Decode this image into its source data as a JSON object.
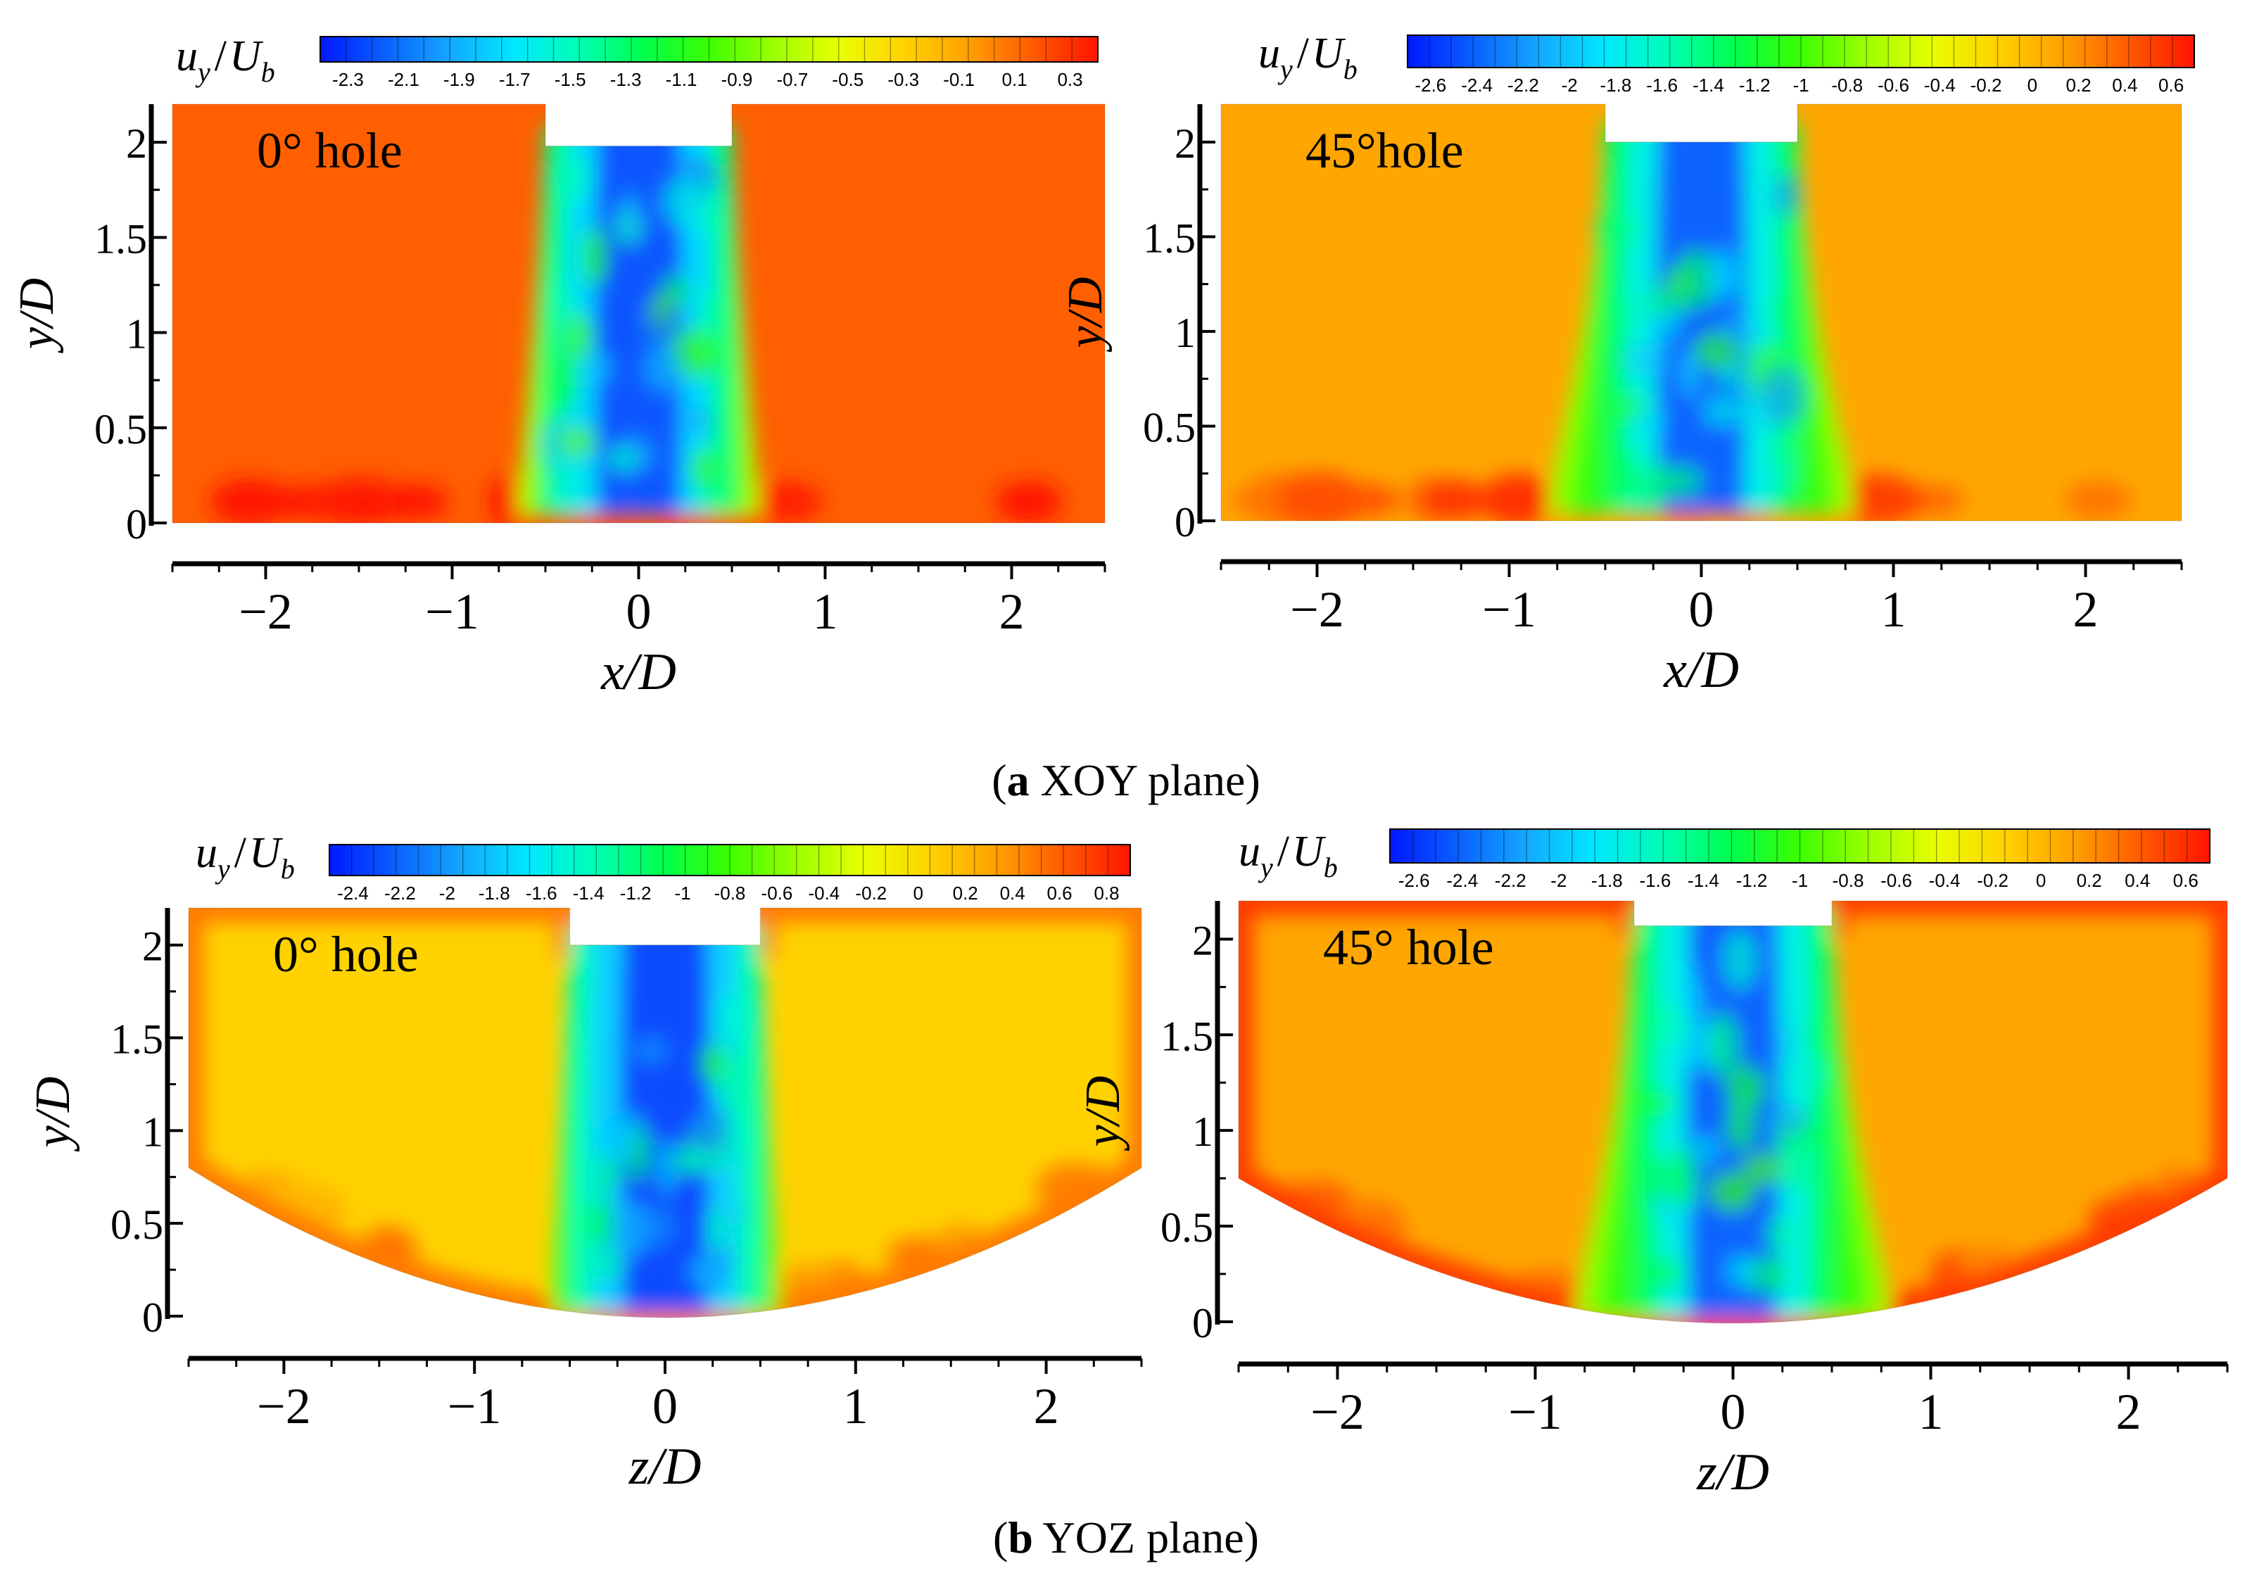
{
  "colors": {
    "cmap": [
      "#0018ff",
      "#0a60ff",
      "#14a8ff",
      "#00e8ff",
      "#00ffb4",
      "#00ff4c",
      "#3cff00",
      "#9cff00",
      "#e8ff00",
      "#ffd200",
      "#ffa000",
      "#ff5a00",
      "#ff1400"
    ],
    "background": "#ffffff",
    "axis": "#000000",
    "hole_cut": "#ffffff"
  },
  "captions": {
    "a_letter": "a",
    "a_text": " XOY plane",
    "b_letter": "b",
    "b_text": " YOZ plane"
  },
  "chart_data": [
    {
      "id": "xoy-0deg",
      "type": "heatmap",
      "title": "0° hole",
      "quantity": "u_y/U_b",
      "colorbar_label_main": "u",
      "colorbar_label_sub": "y",
      "colorbar_label_den": "U",
      "colorbar_label_den_sub": "b",
      "colorbar_ticks": [
        "-2.3",
        "-2.1",
        "-1.9",
        "-1.7",
        "-1.5",
        "-1.3",
        "-1.1",
        "-0.9",
        "-0.7",
        "-0.5",
        "-0.3",
        "-0.1",
        "0.1",
        "0.3"
      ],
      "colorbar_range": [
        -2.4,
        0.4
      ],
      "xlabel": "x/D",
      "ylabel": "y/D",
      "xticks": [
        "−2",
        "−1",
        "0",
        "1",
        "2"
      ],
      "yticks": [
        "0",
        "0.5",
        "1",
        "1.5",
        "2"
      ],
      "xlim": [
        -2.5,
        2.5
      ],
      "ylim": [
        0,
        2.2
      ],
      "domain_shape": "flat",
      "hole_center": 0.0,
      "hole_width": 1.0,
      "hole_top": 1.98,
      "jet_core_value": -2.2,
      "background_value": 0.15,
      "jet_base_spread": 0.65
    },
    {
      "id": "xoy-45deg",
      "type": "heatmap",
      "title": "45°hole",
      "quantity": "u_y/U_b",
      "colorbar_label_main": "u",
      "colorbar_label_sub": "y",
      "colorbar_label_den": "U",
      "colorbar_label_den_sub": "b",
      "colorbar_ticks": [
        "-2.6",
        "-2.4",
        "-2.2",
        "-2",
        "-1.8",
        "-1.6",
        "-1.4",
        "-1.2",
        "-1",
        "-0.8",
        "-0.6",
        "-0.4",
        "-0.2",
        "0",
        "0.2",
        "0.4",
        "0.6"
      ],
      "colorbar_range": [
        -2.7,
        0.7
      ],
      "xlabel": "x/D",
      "ylabel": "y/D",
      "xticks": [
        "−2",
        "−1",
        "0",
        "1",
        "2"
      ],
      "yticks": [
        "0",
        "0.5",
        "1",
        "1.5",
        "2"
      ],
      "xlim": [
        -2.5,
        2.5
      ],
      "ylim": [
        0,
        2.2
      ],
      "domain_shape": "flat",
      "hole_center": 0.0,
      "hole_width": 1.0,
      "hole_top": 2.0,
      "jet_core_value": -2.4,
      "background_value": 0.1,
      "jet_base_spread": 0.8
    },
    {
      "id": "yoz-0deg",
      "type": "heatmap",
      "title": "0° hole",
      "quantity": "u_y/U_b",
      "colorbar_label_main": "u",
      "colorbar_label_sub": "y",
      "colorbar_label_den": "U",
      "colorbar_label_den_sub": "b",
      "colorbar_ticks": [
        "-2.4",
        "-2.2",
        "-2",
        "-1.8",
        "-1.6",
        "-1.4",
        "-1.2",
        "-1",
        "-0.8",
        "-0.6",
        "-0.4",
        "-0.2",
        "0",
        "0.2",
        "0.4",
        "0.6",
        "0.8"
      ],
      "colorbar_range": [
        -2.5,
        0.9
      ],
      "xlabel": "z/D",
      "ylabel": "y/D",
      "xticks": [
        "−2",
        "−1",
        "0",
        "1",
        "2"
      ],
      "yticks": [
        "0",
        "0.5",
        "1",
        "1.5",
        "2"
      ],
      "xlim": [
        -2.5,
        2.5
      ],
      "ylim": [
        0,
        2.2
      ],
      "domain_shape": "curved",
      "bottom_edge_y": 0.8,
      "hole_center": 0.0,
      "hole_width": 1.0,
      "hole_top": 2.0,
      "jet_core_value": -2.3,
      "background_value": 0.05,
      "jet_base_spread": 0.6
    },
    {
      "id": "yoz-45deg",
      "type": "heatmap",
      "title": "45° hole",
      "quantity": "u_y/U_b",
      "colorbar_label_main": "u",
      "colorbar_label_sub": "y",
      "colorbar_label_den": "U",
      "colorbar_label_den_sub": "b",
      "colorbar_ticks": [
        "-2.6",
        "-2.4",
        "-2.2",
        "-2",
        "-1.8",
        "-1.6",
        "-1.4",
        "-1.2",
        "-1",
        "-0.8",
        "-0.6",
        "-0.4",
        "-0.2",
        "0",
        "0.2",
        "0.4",
        "0.6"
      ],
      "colorbar_range": [
        -2.7,
        0.7
      ],
      "xlabel": "z/D",
      "ylabel": "y/D",
      "xticks": [
        "−2",
        "−1",
        "0",
        "1",
        "2"
      ],
      "yticks": [
        "0",
        "0.5",
        "1",
        "1.5",
        "2"
      ],
      "xlim": [
        -2.5,
        2.5
      ],
      "ylim": [
        0,
        2.2
      ],
      "domain_shape": "curved",
      "bottom_edge_y": 0.75,
      "hole_center": 0.0,
      "hole_width": 1.0,
      "hole_top": 2.07,
      "jet_core_value": -2.4,
      "background_value": 0.1,
      "jet_base_spread": 0.8
    }
  ]
}
